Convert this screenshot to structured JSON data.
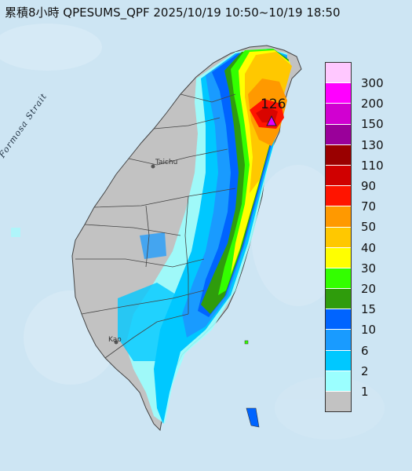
{
  "title": "累積8小時 QPESUMS_QPF 2025/10/19 10:50~10/19 18:50",
  "map_labels": {
    "strait": "Formosa Strait",
    "taichung": "Taichu",
    "kaohsiung": "Kao",
    "peak_value": "126"
  },
  "legend": {
    "items": [
      {
        "label": "300",
        "color": "#ffc8ff"
      },
      {
        "label": "200",
        "color": "#ff00ff"
      },
      {
        "label": "150",
        "color": "#d100d1"
      },
      {
        "label": "130",
        "color": "#9a009a"
      },
      {
        "label": "110",
        "color": "#9a0000"
      },
      {
        "label": "90",
        "color": "#d00000"
      },
      {
        "label": "70",
        "color": "#ff1400"
      },
      {
        "label": "50",
        "color": "#ff9900"
      },
      {
        "label": "40",
        "color": "#ffc800"
      },
      {
        "label": "30",
        "color": "#ffff00"
      },
      {
        "label": "20",
        "color": "#33ff00"
      },
      {
        "label": "15",
        "color": "#2f9c0c"
      },
      {
        "label": "10",
        "color": "#0064ff"
      },
      {
        "label": "6",
        "color": "#199bff"
      },
      {
        "label": "2",
        "color": "#00c8ff"
      },
      {
        "label": "1",
        "color": "#9bffff"
      },
      {
        "label": "",
        "color": "#c2c2c2"
      }
    ]
  }
}
